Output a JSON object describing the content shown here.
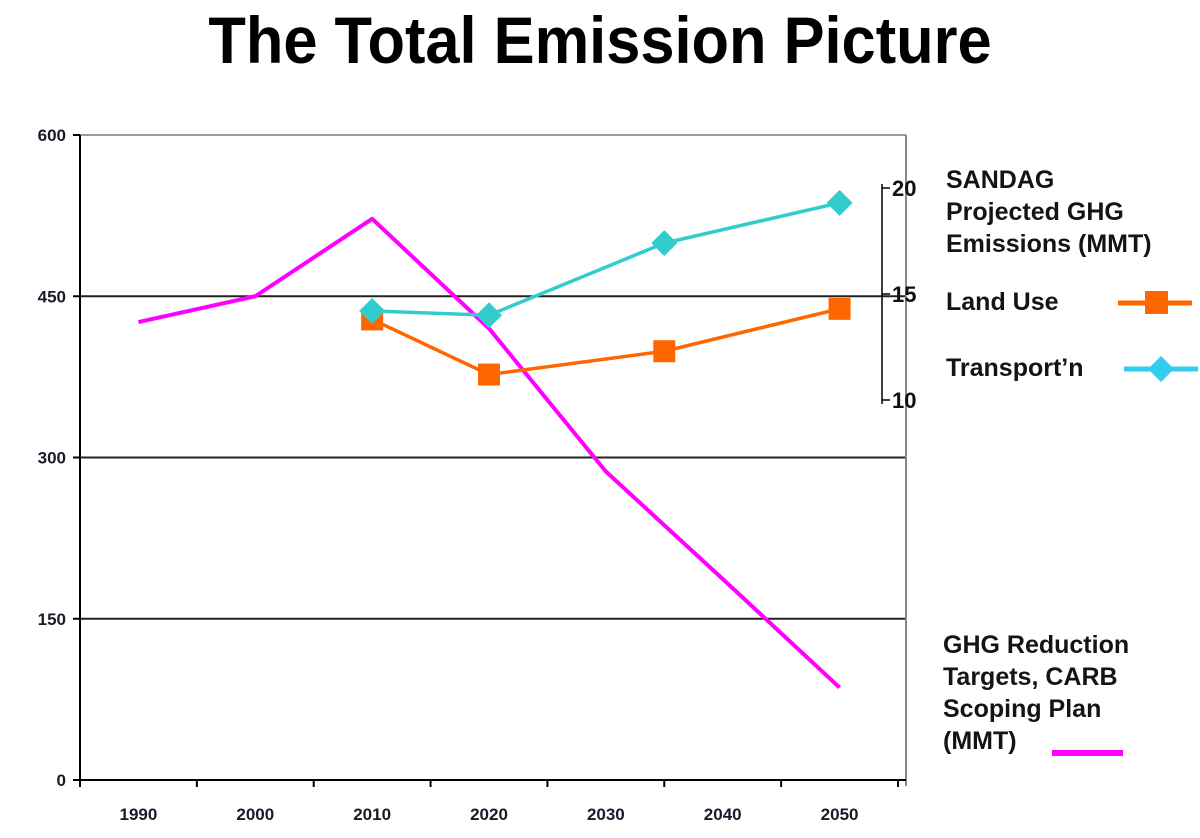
{
  "title": "The Total Emission Picture",
  "legend": {
    "sandag_heading": [
      "SANDAG",
      "Projected GHG",
      "Emissions (MMT)"
    ],
    "land_use_label": "Land Use",
    "transport_label": "Transport’n",
    "carb_heading": [
      "GHG Reduction",
      "Targets, CARB",
      "Scoping Plan",
      "(MMT)"
    ]
  },
  "colors": {
    "carb": "#ff00ff",
    "land_use": "#ff6600",
    "transport": "#33cccc",
    "transport_legend": "#33ccee",
    "grid": "#000000"
  },
  "chart_data": {
    "type": "line",
    "title": "The Total Emission Picture",
    "xlabel": "",
    "ylabel": "",
    "categories": [
      "1990",
      "2000",
      "2010",
      "2020",
      "2030",
      "2040",
      "2050"
    ],
    "x_tick_labels": [
      "1990",
      "2000",
      "2010",
      "2020",
      "2030",
      "2040",
      "2050"
    ],
    "ylim": [
      0,
      600
    ],
    "y_ticks": [
      0,
      150,
      300,
      450,
      600
    ],
    "y_tick_labels": [
      "0",
      "150",
      "300",
      "450",
      "600"
    ],
    "y2lim": [
      10,
      20
    ],
    "y2_ticks": [
      10,
      15,
      20
    ],
    "y2_tick_labels": [
      "10",
      "15",
      "20"
    ],
    "grid": "horizontal",
    "legend_position": "right",
    "series": [
      {
        "name": "GHG Reduction Targets, CARB Scoping Plan (MMT)",
        "axis": "left",
        "marker": "none",
        "x": [
          1990,
          2000,
          2010,
          2020,
          2030,
          2040,
          2050
        ],
        "values": [
          426,
          450,
          522,
          420,
          287,
          187,
          86
        ]
      },
      {
        "name": "Land Use",
        "axis": "right",
        "marker": "square",
        "x": [
          2010,
          2020,
          2035,
          2050
        ],
        "values": [
          13.8,
          11.2,
          12.3,
          14.3
        ]
      },
      {
        "name": "Transport'n",
        "axis": "right",
        "marker": "diamond",
        "x": [
          2010,
          2020,
          2035,
          2050
        ],
        "values": [
          14.2,
          14.0,
          17.4,
          19.3
        ]
      }
    ]
  }
}
